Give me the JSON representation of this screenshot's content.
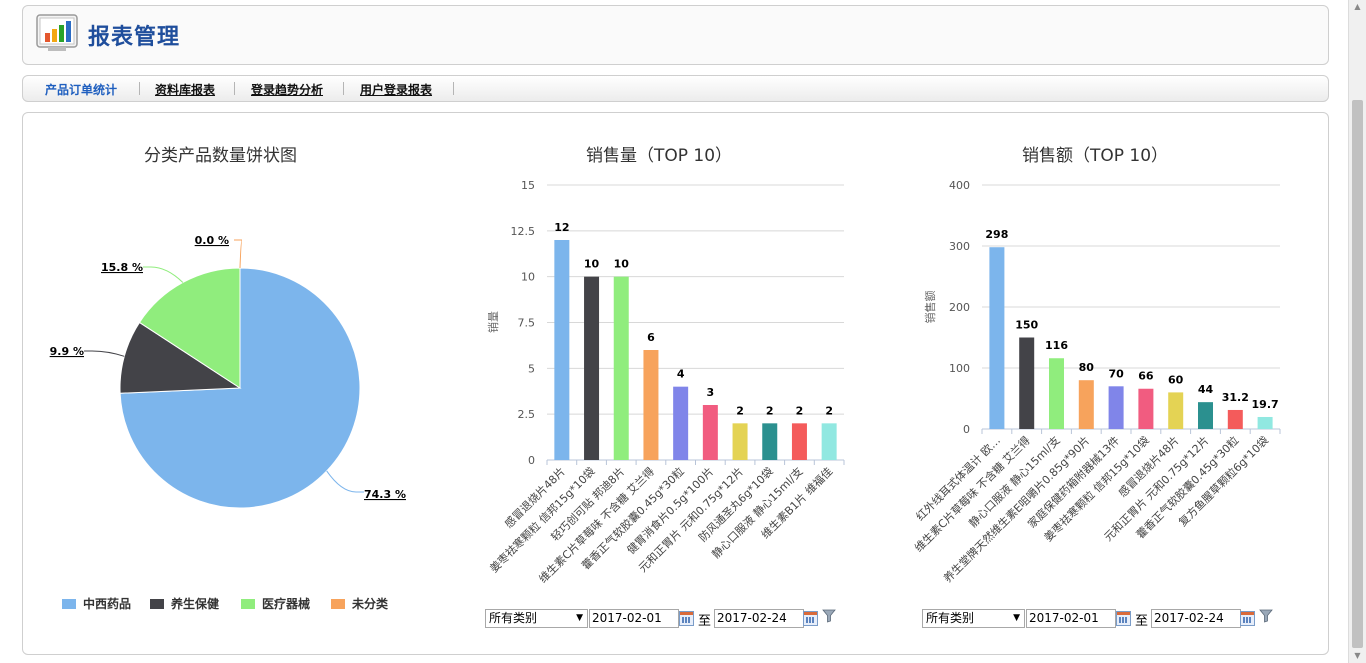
{
  "header": {
    "title": "报表管理",
    "icon": "report-chart-icon"
  },
  "tabs": [
    {
      "label": "产品订单统计",
      "active": true
    },
    {
      "label": "资料库报表",
      "active": false
    },
    {
      "label": "登录趋势分析",
      "active": false
    },
    {
      "label": "用户登录报表",
      "active": false
    }
  ],
  "filters": [
    {
      "category": "所有类别",
      "start": "2017-02-01",
      "to": "至",
      "end": "2017-02-24"
    },
    {
      "category": "所有类别",
      "start": "2017-02-01",
      "to": "至",
      "end": "2017-02-24"
    }
  ],
  "chart_data": [
    {
      "type": "pie",
      "title": "分类产品数量饼状图",
      "labels": [
        "中西药品",
        "养生保健",
        "医疗器械",
        "未分类"
      ],
      "values": [
        74.3,
        9.9,
        15.8,
        0.0
      ],
      "value_labels": [
        "74.3 %",
        "9.9 %",
        "15.8 %",
        "0.0 %"
      ],
      "colors": [
        "#7cb5ec",
        "#434348",
        "#90ed7d",
        "#f7a35c"
      ],
      "legend": "bottom"
    },
    {
      "type": "bar",
      "title": "销售量（TOP 10）",
      "ylabel": "销量",
      "ylim": [
        0,
        15
      ],
      "yticks": [
        "0",
        "2.5",
        "5",
        "7.5",
        "10",
        "12.5",
        "15"
      ],
      "ytick_values": [
        0,
        2.5,
        5,
        7.5,
        10,
        12.5,
        15
      ],
      "categories": [
        "感冒退烧片48片",
        "姜枣祛寒颗粒 信邦15g*10袋",
        "轻巧创可贴 邦迪8片",
        "维生素C片草莓味 不含糖 艾兰得",
        "藿香正气软胶囊0.45g*30粒",
        "健胃消食片0.5g*100片",
        "元和正胃片 元和0.75g*12片",
        "防风通圣丸6g*10袋",
        "静心口服液 静心15ml/支",
        "维生素B1片 维福佳"
      ],
      "values": [
        12,
        10,
        10,
        6,
        4,
        3,
        2,
        2,
        2,
        2
      ],
      "value_labels": [
        "12",
        "10",
        "10",
        "6",
        "4",
        "3",
        "2",
        "2",
        "2",
        "2"
      ],
      "colors": [
        "#7cb5ec",
        "#434348",
        "#90ed7d",
        "#f7a35c",
        "#8085e9",
        "#f15c80",
        "#e4d354",
        "#2b908f",
        "#f45b5b",
        "#91e8e1"
      ],
      "grid": true
    },
    {
      "type": "bar",
      "title": "销售额（TOP 10）",
      "ylabel": "销售额",
      "ylim": [
        0,
        400
      ],
      "yticks": [
        "0",
        "100",
        "200",
        "300",
        "400"
      ],
      "ytick_values": [
        0,
        100,
        200,
        300,
        400
      ],
      "categories": [
        "红外线耳式体温计 欧…",
        "维生素C片草莓味 不含糖 艾兰得",
        "静心口服液 静心15ml/支",
        "养生堂牌天然维生素E咀嚼片0.85g*90片",
        "家庭保健药箱附器械13件",
        "姜枣祛寒颗粒 信邦15g*10袋",
        "感冒退烧片48片",
        "元和正胃片 元和0.75g*12片",
        "藿香正气软胶囊0.45g*30粒",
        "复方鱼腥草颗粒6g*10袋"
      ],
      "values": [
        298,
        150,
        116,
        80,
        70,
        66,
        60,
        44,
        31.2,
        19.7
      ],
      "value_labels": [
        "298",
        "150",
        "116",
        "80",
        "70",
        "66",
        "60",
        "44",
        "31.2",
        "19.7"
      ],
      "colors": [
        "#7cb5ec",
        "#434348",
        "#90ed7d",
        "#f7a35c",
        "#8085e9",
        "#f15c80",
        "#e4d354",
        "#2b908f",
        "#f45b5b",
        "#91e8e1"
      ],
      "grid": true
    }
  ]
}
